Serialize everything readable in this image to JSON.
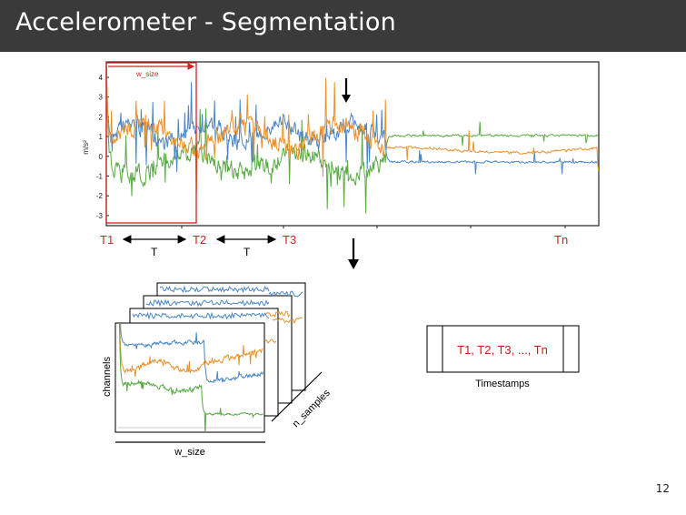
{
  "slide": {
    "title": "Accelerometer - Segmentation",
    "page_number": "12"
  },
  "signal_plot": {
    "y_axis_label": "m/s²",
    "y_ticks": [
      "4",
      "3",
      "2",
      "1",
      "0",
      "-1",
      "-2",
      "-3"
    ],
    "window_label": "w_size",
    "markers": [
      "T1",
      "T2",
      "T3",
      "Tn"
    ],
    "interval_label": "T",
    "channel_colors": {
      "blue": "#4a86c5",
      "orange": "#e8922e",
      "green": "#5aaa46"
    },
    "marker_color": "#d62020"
  },
  "window_stack": {
    "y_label": "channels",
    "x_label": "w_size",
    "depth_label": "n_samples"
  },
  "timestamps_box": {
    "content": "T1, T2, T3, ..., Tn",
    "caption": "Timestamps"
  }
}
